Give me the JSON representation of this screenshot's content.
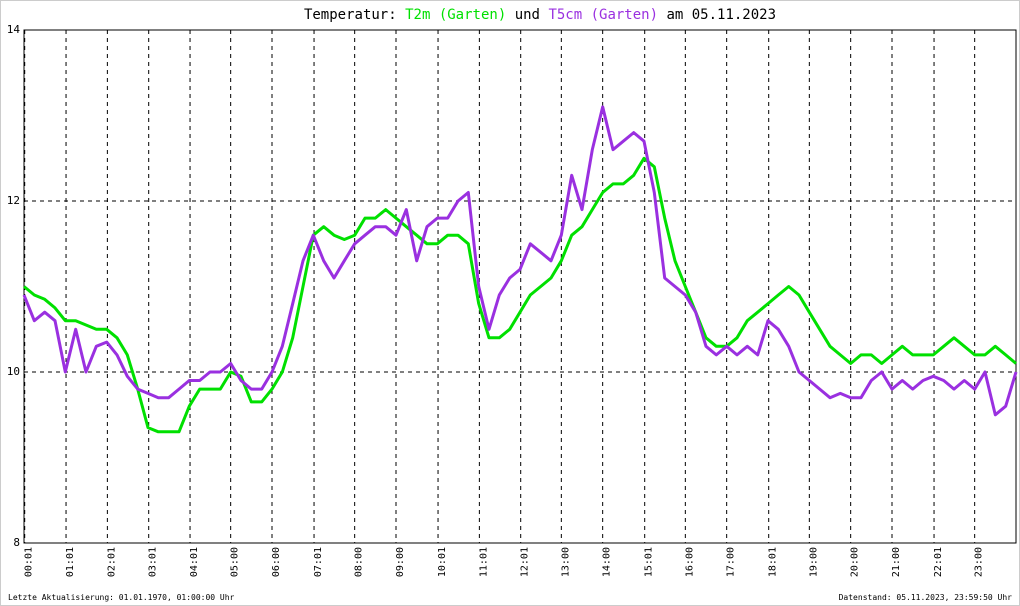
{
  "chart_data": {
    "type": "line",
    "title_prefix": "Temperatur:",
    "title_connector": "und",
    "title_suffix": "am 05.11.2023",
    "footer_left": "Letzte Aktualisierung: 01.01.1970, 01:00:00 Uhr",
    "footer_right": "Datenstand: 05.11.2023, 23:59:50 Uhr",
    "grid": true,
    "xlim": [
      0,
      24
    ],
    "ylim": [
      8,
      14
    ],
    "yticks": [
      8,
      10,
      12,
      14
    ],
    "xticks": [
      {
        "value": 0.017,
        "label": "00:01"
      },
      {
        "value": 1.017,
        "label": "01:01"
      },
      {
        "value": 2.017,
        "label": "02:01"
      },
      {
        "value": 3.017,
        "label": "03:01"
      },
      {
        "value": 4.017,
        "label": "04:01"
      },
      {
        "value": 5,
        "label": "05:00"
      },
      {
        "value": 6,
        "label": "06:00"
      },
      {
        "value": 7.017,
        "label": "07:01"
      },
      {
        "value": 8,
        "label": "08:00"
      },
      {
        "value": 9,
        "label": "09:00"
      },
      {
        "value": 10.017,
        "label": "10:01"
      },
      {
        "value": 11.017,
        "label": "11:01"
      },
      {
        "value": 12.017,
        "label": "12:01"
      },
      {
        "value": 13,
        "label": "13:00"
      },
      {
        "value": 14,
        "label": "14:00"
      },
      {
        "value": 15.017,
        "label": "15:01"
      },
      {
        "value": 16,
        "label": "16:00"
      },
      {
        "value": 17,
        "label": "17:00"
      },
      {
        "value": 18.017,
        "label": "18:01"
      },
      {
        "value": 19,
        "label": "19:00"
      },
      {
        "value": 20,
        "label": "20:00"
      },
      {
        "value": 21,
        "label": "21:00"
      },
      {
        "value": 22.017,
        "label": "22:01"
      },
      {
        "value": 23,
        "label": "23:00"
      }
    ],
    "x": [
      0,
      0.25,
      0.5,
      0.75,
      1,
      1.25,
      1.5,
      1.75,
      2,
      2.25,
      2.5,
      2.75,
      3,
      3.25,
      3.5,
      3.75,
      4,
      4.25,
      4.5,
      4.75,
      5,
      5.25,
      5.5,
      5.75,
      6,
      6.25,
      6.5,
      6.75,
      7,
      7.25,
      7.5,
      7.75,
      8,
      8.25,
      8.5,
      8.75,
      9,
      9.25,
      9.5,
      9.75,
      10,
      10.25,
      10.5,
      10.75,
      11,
      11.25,
      11.5,
      11.75,
      12,
      12.25,
      12.5,
      12.75,
      13,
      13.25,
      13.5,
      13.75,
      14,
      14.25,
      14.5,
      14.75,
      15,
      15.25,
      15.5,
      15.75,
      16,
      16.25,
      16.5,
      16.75,
      17,
      17.25,
      17.5,
      17.75,
      18,
      18.25,
      18.5,
      18.75,
      19,
      19.25,
      19.5,
      19.75,
      20,
      20.25,
      20.5,
      20.75,
      21,
      21.25,
      21.5,
      21.75,
      22,
      22.25,
      22.5,
      22.75,
      23,
      23.25,
      23.5,
      23.75,
      24
    ],
    "series": [
      {
        "name": "T2m (Garten)",
        "color": "#00e000",
        "values": [
          11.0,
          10.9,
          10.85,
          10.75,
          10.6,
          10.6,
          10.55,
          10.5,
          10.5,
          10.4,
          10.2,
          9.8,
          9.35,
          9.3,
          9.3,
          9.3,
          9.6,
          9.8,
          9.8,
          9.8,
          10.0,
          9.95,
          9.65,
          9.65,
          9.8,
          10.0,
          10.4,
          11.0,
          11.6,
          11.7,
          11.6,
          11.55,
          11.6,
          11.8,
          11.8,
          11.9,
          11.8,
          11.7,
          11.6,
          11.5,
          11.5,
          11.6,
          11.6,
          11.5,
          10.8,
          10.4,
          10.4,
          10.5,
          10.7,
          10.9,
          11.0,
          11.1,
          11.3,
          11.6,
          11.7,
          11.9,
          12.1,
          12.2,
          12.2,
          12.3,
          12.5,
          12.4,
          11.8,
          11.3,
          11.0,
          10.7,
          10.4,
          10.3,
          10.3,
          10.4,
          10.6,
          10.7,
          10.8,
          10.9,
          11.0,
          10.9,
          10.7,
          10.5,
          10.3,
          10.2,
          10.1,
          10.2,
          10.2,
          10.1,
          10.2,
          10.3,
          10.2,
          10.2,
          10.2,
          10.3,
          10.4,
          10.3,
          10.2,
          10.2,
          10.3,
          10.2,
          10.1
        ]
      },
      {
        "name": "T5cm (Garten)",
        "color": "#9a30e0",
        "values": [
          10.9,
          10.6,
          10.7,
          10.6,
          10.0,
          10.5,
          10.0,
          10.3,
          10.35,
          10.2,
          9.95,
          9.8,
          9.75,
          9.7,
          9.7,
          9.8,
          9.9,
          9.9,
          10.0,
          10.0,
          10.1,
          9.9,
          9.8,
          9.8,
          10.0,
          10.3,
          10.8,
          11.3,
          11.6,
          11.3,
          11.1,
          11.3,
          11.5,
          11.6,
          11.7,
          11.7,
          11.6,
          11.9,
          11.3,
          11.7,
          11.8,
          11.8,
          12.0,
          12.1,
          11.0,
          10.5,
          10.9,
          11.1,
          11.2,
          11.5,
          11.4,
          11.3,
          11.6,
          12.3,
          11.9,
          12.6,
          13.1,
          12.6,
          12.7,
          12.8,
          12.7,
          12.1,
          11.1,
          11.0,
          10.9,
          10.7,
          10.3,
          10.2,
          10.3,
          10.2,
          10.3,
          10.2,
          10.6,
          10.5,
          10.3,
          10.0,
          9.9,
          9.8,
          9.7,
          9.75,
          9.7,
          9.7,
          9.9,
          10.0,
          9.8,
          9.9,
          9.8,
          9.9,
          9.95,
          9.9,
          9.8,
          9.9,
          9.8,
          10.0,
          9.5,
          9.6,
          10.0
        ]
      }
    ]
  }
}
